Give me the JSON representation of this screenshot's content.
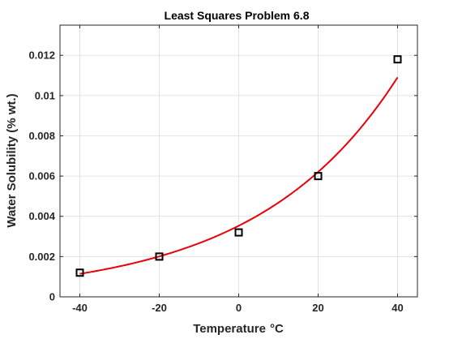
{
  "chart_data": {
    "type": "scatter",
    "title": "Least Squares Problem 6.8",
    "xlabel": "Temperature",
    "xlabel_unit": "°C",
    "ylabel": "Water Solubility (% wt.)",
    "xlim": [
      -45,
      45
    ],
    "ylim": [
      0,
      0.0135
    ],
    "xticks": [
      "-40",
      "-20",
      "0",
      "20",
      "40"
    ],
    "xtick_values": [
      -40,
      -20,
      0,
      20,
      40
    ],
    "yticks": [
      "0",
      "0.002",
      "0.004",
      "0.006",
      "0.008",
      "0.01",
      "0.012"
    ],
    "ytick_values": [
      0,
      0.002,
      0.004,
      0.006,
      0.008,
      0.01,
      0.012
    ],
    "grid": true,
    "series": [
      {
        "kind": "markers",
        "marker": "square",
        "color": "#000000",
        "x": [
          -40,
          -20,
          0,
          20,
          40
        ],
        "y": [
          0.0012,
          0.002,
          0.0032,
          0.006,
          0.0118
        ]
      },
      {
        "kind": "fit-curve",
        "color": "#e8000b",
        "model": "exponential",
        "a": 0.00353,
        "b": 0.0282,
        "x_range": [
          -40,
          40
        ]
      }
    ]
  }
}
